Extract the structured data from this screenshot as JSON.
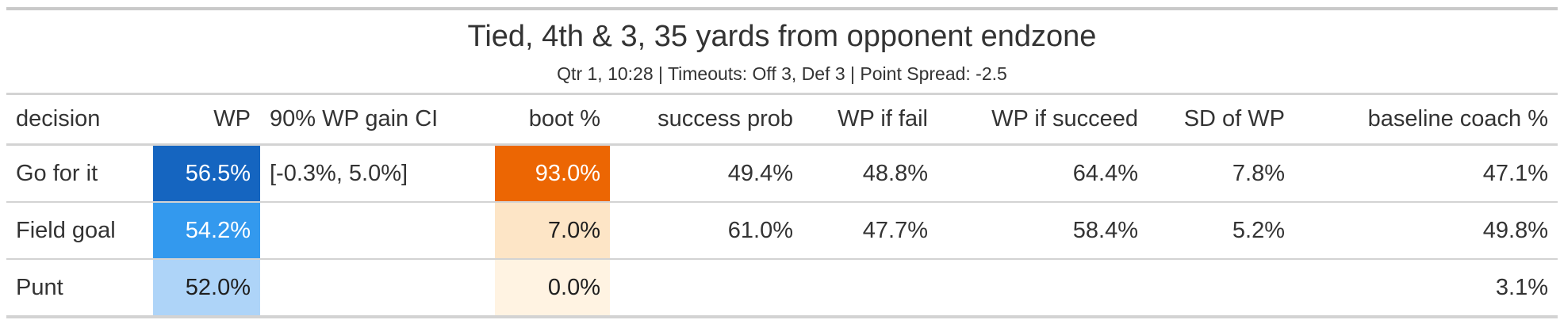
{
  "title": "Tied, 4th & 3, 35 yards from opponent endzone",
  "subtitle": "Qtr 1, 10:28 | Timeouts: Off 3, Def 3 | Point Spread: -2.5",
  "columns": {
    "decision": "decision",
    "wp": "WP",
    "ci": "90% WP gain CI",
    "boot": "boot %",
    "success": "success prob",
    "wp_fail": "WP if fail",
    "wp_succeed": "WP if succeed",
    "sd": "SD of WP",
    "baseline": "baseline coach %"
  },
  "rows": [
    {
      "decision": "Go for it",
      "wp": "56.5%",
      "ci": "[-0.3%, 5.0%]",
      "boot": "93.0%",
      "success": "49.4%",
      "wp_fail": "48.8%",
      "wp_succeed": "64.4%",
      "sd": "7.8%",
      "baseline": "47.1%"
    },
    {
      "decision": "Field goal",
      "wp": "54.2%",
      "ci": "",
      "boot": "7.0%",
      "success": "61.0%",
      "wp_fail": "47.7%",
      "wp_succeed": "58.4%",
      "sd": "5.2%",
      "baseline": "49.8%"
    },
    {
      "decision": "Punt",
      "wp": "52.0%",
      "ci": "",
      "boot": "0.0%",
      "success": "",
      "wp_fail": "",
      "wp_succeed": "",
      "sd": "",
      "baseline": "3.1%"
    }
  ],
  "colors": {
    "wp_fill": [
      "#1565c0",
      "#3399ee",
      "#aed4f8"
    ],
    "boot_fill": [
      "#ec6603",
      "#fde5c6",
      "#fff3e2"
    ],
    "rule": "#d3d3d3",
    "text": "#333333"
  }
}
